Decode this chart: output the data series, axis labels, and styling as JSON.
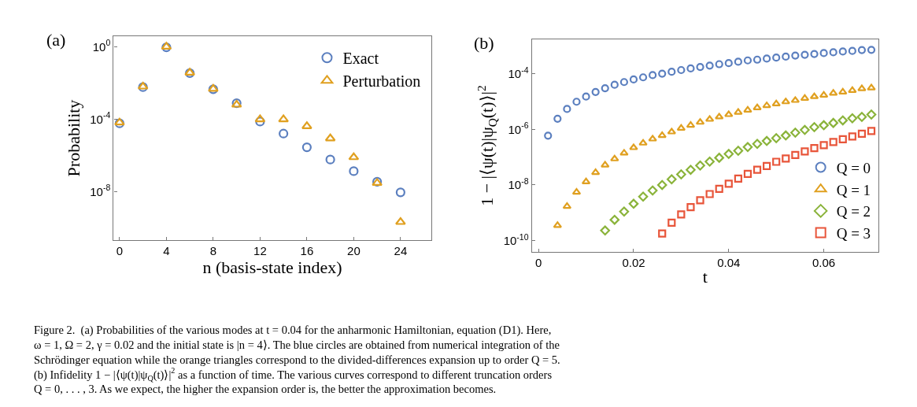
{
  "chart_data": [
    {
      "type": "scatter",
      "title": "(a)",
      "xlabel": "n (basis-state index)",
      "ylabel": "Probability",
      "log": "y",
      "legend": "top right",
      "xlim": [
        -0.5,
        26.6
      ],
      "xticks": [
        0,
        4,
        8,
        12,
        16,
        20,
        24
      ],
      "ylim": [
        2.1e-11,
        3.8
      ],
      "yticks": [
        {
          "value": 1,
          "label": "10$^{0}$"
        },
        {
          "value": 0.0001,
          "label": "10$^{-4}$"
        },
        {
          "value": 1e-08,
          "label": "10$^{-8}$"
        }
      ],
      "series": [
        {
          "name": "Exact",
          "color": "#5b7fbf",
          "marker": "circle",
          "x": [
            0,
            2,
            4,
            6,
            8,
            10,
            12,
            14,
            16,
            18,
            20,
            22,
            24
          ],
          "values": [
            5.9e-05,
            0.0059,
            0.93,
            0.035,
            0.0045,
            0.00076,
            7.4e-05,
            1.6e-05,
            2.8e-06,
            5.9e-07,
            1.35e-07,
            3.5e-08,
            9.1e-09
          ]
        },
        {
          "name": "Perturbation",
          "color": "#e0a020",
          "marker": "triangle",
          "x": [
            0,
            2,
            4,
            6,
            8,
            10,
            12,
            14,
            16,
            18,
            20,
            22,
            24
          ],
          "values": [
            6.5e-05,
            0.0063,
            1.0,
            0.037,
            0.0047,
            0.00063,
            9.8e-05,
            9.8e-05,
            4.1e-05,
            8.7e-06,
            7.9e-07,
            3e-08,
            2.1e-10
          ]
        }
      ],
      "annotations": [
        "Figure 2.  (a) Probabilities of the various modes at t = 0.04 for the anharmonic Hamiltonian, equation (D1). Here,\nω = 1, Ω = 2, γ = 0.02 and the initial state is |n = 4⟩. The blue circles are obtained from numerical integration of the\nSchrödinger equation while the orange triangles correspond to the divided-differences expansion up to order Q = 5.\n(b) Infidelity 1 − |⟨ψ(t)|ψ$_{Q}$(t)⟩|$^{2}$ as a function of time. The various curves correspond to different truncation orders\nQ = 0, . . . , 3. As we expect, the higher the expansion order is, the better the approximation becomes."
      ]
    },
    {
      "type": "scatter",
      "title": "(b)",
      "xlabel": "t",
      "ylabel": "1 − |⟨ψ(t)|ψ$_{Q}$(t)⟩|$^{2}$",
      "log": "y",
      "legend": "bottom right",
      "xlim": [
        -0.0014,
        0.0715
      ],
      "xticks": [
        0,
        0.02,
        0.04,
        0.06
      ],
      "ylim": [
        3.9e-11,
        0.0017
      ],
      "yticks": [
        {
          "value": 0.0001,
          "label": "10$^{-4}$"
        },
        {
          "value": 1e-06,
          "label": "10$^{-6}$"
        },
        {
          "value": 1e-08,
          "label": "10$^{-8}$"
        },
        {
          "value": 1e-10,
          "label": "10$^{-10}$"
        }
      ],
      "series": [
        {
          "name": "Q = 0",
          "color": "#5b7fbf",
          "marker": "circle",
          "x": [
            0.002,
            0.004,
            0.006,
            0.008,
            0.01,
            0.012,
            0.014,
            0.016,
            0.018,
            0.02,
            0.022,
            0.024,
            0.026,
            0.028,
            0.03,
            0.032,
            0.034,
            0.036,
            0.038,
            0.04,
            0.042,
            0.044,
            0.046,
            0.048,
            0.05,
            0.052,
            0.054,
            0.056,
            0.058,
            0.06,
            0.062,
            0.064,
            0.066,
            0.068,
            0.07
          ],
          "values": [
            5.9e-07,
            2.4e-06,
            5.4e-06,
            9.8e-06,
            1.5e-05,
            2.2e-05,
            3e-05,
            4e-05,
            5e-05,
            6.2e-05,
            7.4e-05,
            8.9e-05,
            0.0001,
            0.000117,
            0.000135,
            0.000155,
            0.000174,
            0.000195,
            0.00022,
            0.00024,
            0.00027,
            0.0003,
            0.00032,
            0.00035,
            0.00038,
            0.00041,
            0.00045,
            0.00048,
            0.00051,
            0.00055,
            0.00059,
            0.00063,
            0.00066,
            0.00071,
            0.00072
          ]
        },
        {
          "name": "Q = 1",
          "color": "#e0a020",
          "marker": "triangle",
          "x": [
            0.004,
            0.006,
            0.008,
            0.01,
            0.012,
            0.014,
            0.016,
            0.018,
            0.02,
            0.022,
            0.024,
            0.026,
            0.028,
            0.03,
            0.032,
            0.034,
            0.036,
            0.038,
            0.04,
            0.042,
            0.044,
            0.046,
            0.048,
            0.05,
            0.052,
            0.054,
            0.056,
            0.058,
            0.06,
            0.062,
            0.064,
            0.066,
            0.068,
            0.07
          ],
          "values": [
            3.5e-10,
            1.7e-09,
            5.5e-09,
            1.3e-08,
            2.8e-08,
            5.2e-08,
            8.7e-08,
            1.4e-07,
            2.2e-07,
            3.2e-07,
            4.5e-07,
            6e-07,
            8.1e-07,
            1.1e-06,
            1.4e-06,
            1.8e-06,
            2.3e-06,
            2.8e-06,
            3.4e-06,
            4.1e-06,
            4.9e-06,
            6e-06,
            7.1e-06,
            8.3e-06,
            9.8e-06,
            1.1e-05,
            1.3e-05,
            1.5e-05,
            1.7e-05,
            2e-05,
            2.2e-05,
            2.5e-05,
            2.9e-05,
            3.1e-05
          ]
        },
        {
          "name": "Q = 2",
          "color": "#8ab33a",
          "marker": "diamond",
          "x": [
            0.014,
            0.016,
            0.018,
            0.02,
            0.022,
            0.024,
            0.026,
            0.028,
            0.03,
            0.032,
            0.034,
            0.036,
            0.038,
            0.04,
            0.042,
            0.044,
            0.046,
            0.048,
            0.05,
            0.052,
            0.054,
            0.056,
            0.058,
            0.06,
            0.062,
            0.064,
            0.066,
            0.068,
            0.07
          ],
          "values": [
            2.3e-10,
            5.6e-10,
            1.1e-09,
            2.1e-09,
            3.8e-09,
            6.3e-09,
            1e-08,
            1.6e-08,
            2.4e-08,
            3.5e-08,
            5e-08,
            6.9e-08,
            9.5e-08,
            1.3e-07,
            1.7e-07,
            2.3e-07,
            3e-07,
            3.8e-07,
            4.8e-07,
            6e-07,
            7.6e-07,
            9.5e-07,
            1.2e-06,
            1.4e-06,
            1.7e-06,
            2.1e-06,
            2.5e-06,
            2.8e-06,
            3.4e-06
          ]
        },
        {
          "name": "Q = 3",
          "color": "#e8553a",
          "marker": "square",
          "x": [
            0.026,
            0.028,
            0.03,
            0.032,
            0.034,
            0.036,
            0.038,
            0.04,
            0.042,
            0.044,
            0.046,
            0.048,
            0.05,
            0.052,
            0.054,
            0.056,
            0.058,
            0.06,
            0.062,
            0.064,
            0.066,
            0.068,
            0.07
          ],
          "values": [
            1.8e-10,
            4.4e-10,
            8.7e-10,
            1.6e-09,
            2.8e-09,
            4.7e-09,
            7.2e-09,
            1.1e-08,
            1.7e-08,
            2.5e-08,
            3.5e-08,
            4.8e-08,
            6.8e-08,
            8.9e-08,
            1.2e-07,
            1.6e-07,
            2.1e-07,
            2.7e-07,
            3.5e-07,
            4.4e-07,
            5.5e-07,
            6.9e-07,
            8.7e-07
          ]
        }
      ]
    }
  ]
}
